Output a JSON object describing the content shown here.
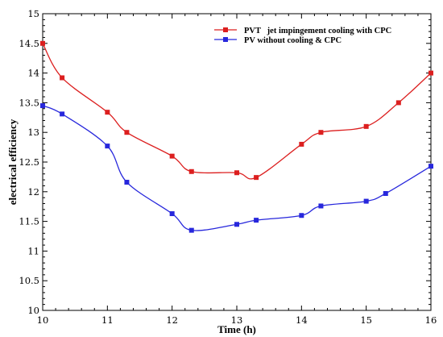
{
  "chart_data": {
    "type": "line",
    "title": "",
    "xlabel": "Time (h)",
    "ylabel": "electrical efficiency",
    "xlim": [
      10,
      16
    ],
    "ylim": [
      10,
      15
    ],
    "x_ticks": [
      "10",
      "11",
      "12",
      "13",
      "14",
      "15",
      "16"
    ],
    "y_ticks": [
      "10",
      "10.5",
      "11",
      "11.5",
      "12",
      "12.5",
      "13",
      "13.5",
      "14",
      "14.5",
      "15"
    ],
    "grid": false,
    "legend_position": "top-right",
    "series": [
      {
        "name": "PVT   jet impingement cooling with CPC",
        "color": "#dc1f1f",
        "marker": "square",
        "x": [
          10,
          10.3,
          11,
          11.3,
          12,
          12.3,
          13,
          13.3,
          14,
          14.3,
          15,
          15.5,
          16
        ],
        "y": [
          14.5,
          13.92,
          13.34,
          13.0,
          12.6,
          12.34,
          12.32,
          12.24,
          12.8,
          13.0,
          13.1,
          13.5,
          14.0
        ]
      },
      {
        "name": "PV without cooling & CPC",
        "color": "#2727dc",
        "marker": "square",
        "x": [
          10,
          10.3,
          11,
          11.3,
          12,
          12.3,
          13,
          13.3,
          14,
          14.3,
          15,
          15.3,
          16
        ],
        "y": [
          13.45,
          13.31,
          12.77,
          12.16,
          11.63,
          11.35,
          11.45,
          11.52,
          11.6,
          11.76,
          11.84,
          11.97,
          12.43
        ]
      }
    ]
  }
}
